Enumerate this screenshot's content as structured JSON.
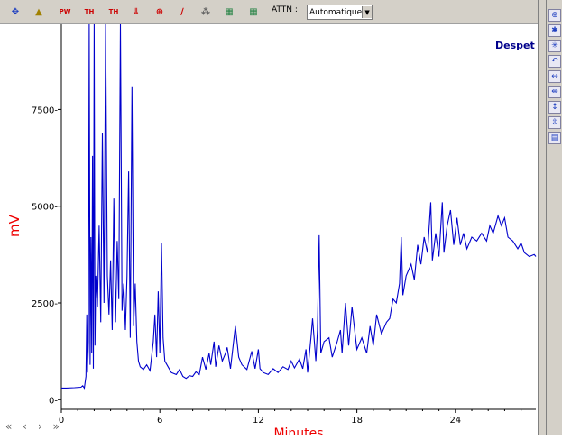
{
  "toolbar": {
    "icons": [
      {
        "name": "move-icon",
        "glyph": "✥"
      },
      {
        "name": "peak-icon",
        "glyph": "▲"
      },
      {
        "name": "pw-icon",
        "glyph": "PW"
      },
      {
        "name": "th-icon",
        "glyph": "TH"
      },
      {
        "name": "thpw-icon",
        "glyph": "TH"
      },
      {
        "name": "integrate-icon",
        "glyph": "⇓"
      },
      {
        "name": "baseline-icon",
        "glyph": "⊕"
      },
      {
        "name": "slope-icon",
        "glyph": "∕"
      },
      {
        "name": "overlay-icon",
        "glyph": "⁂"
      },
      {
        "name": "grid-icon",
        "glyph": "▦"
      },
      {
        "name": "grid-alt-icon",
        "glyph": "▦"
      }
    ],
    "attn_label": "ATTN :",
    "attn_value": "Automatique"
  },
  "right_toolbar": {
    "icons": [
      "zoom-full-icon",
      "zoom-in-icon",
      "zoom-out-icon",
      "undo-icon",
      "expand-horizontal-icon",
      "shrink-horizontal-icon",
      "expand-vertical-icon",
      "shrink-vertical-icon",
      "color-scale-icon"
    ]
  },
  "nav": {
    "first": "«",
    "prev": "‹",
    "next": "›",
    "last": "»"
  },
  "despet_label": "Despet",
  "colors": {
    "line": "#0000cc",
    "axis_label": "#ee0000",
    "link": "#00008b"
  },
  "chart_data": {
    "type": "line",
    "title": "",
    "xlabel": "Minutes",
    "ylabel": "mV",
    "xlim": [
      0,
      28.9
    ],
    "ylim": [
      -250,
      9700
    ],
    "x_ticks": [
      0,
      6,
      12,
      18,
      24
    ],
    "y_ticks": [
      0,
      2500,
      5000,
      7500
    ],
    "x_tick_labels": [
      "0",
      "6",
      "12",
      "18",
      "24"
    ],
    "y_tick_labels": [
      "0-",
      "2500-",
      "5000-",
      "7500-"
    ],
    "grid": false,
    "series": [
      {
        "name": "",
        "points": [
          [
            0,
            300
          ],
          [
            0.3,
            300
          ],
          [
            0.8,
            310
          ],
          [
            1.2,
            320
          ],
          [
            1.3,
            360
          ],
          [
            1.4,
            300
          ],
          [
            1.5,
            600
          ],
          [
            1.55,
            2200
          ],
          [
            1.6,
            700
          ],
          [
            1.65,
            1500
          ],
          [
            1.7,
            9700
          ],
          [
            1.75,
            900
          ],
          [
            1.8,
            4200
          ],
          [
            1.85,
            1200
          ],
          [
            1.9,
            6300
          ],
          [
            1.95,
            800
          ],
          [
            2.0,
            9700
          ],
          [
            2.05,
            1400
          ],
          [
            2.1,
            3200
          ],
          [
            2.2,
            2400
          ],
          [
            2.3,
            4500
          ],
          [
            2.4,
            2000
          ],
          [
            2.5,
            6900
          ],
          [
            2.6,
            2500
          ],
          [
            2.7,
            9700
          ],
          [
            2.8,
            3200
          ],
          [
            2.9,
            2200
          ],
          [
            3.0,
            3600
          ],
          [
            3.1,
            1800
          ],
          [
            3.2,
            5200
          ],
          [
            3.3,
            2000
          ],
          [
            3.4,
            4100
          ],
          [
            3.5,
            2600
          ],
          [
            3.6,
            9700
          ],
          [
            3.7,
            2300
          ],
          [
            3.8,
            3000
          ],
          [
            3.9,
            1800
          ],
          [
            4.0,
            3200
          ],
          [
            4.1,
            5900
          ],
          [
            4.2,
            1600
          ],
          [
            4.3,
            8100
          ],
          [
            4.4,
            1900
          ],
          [
            4.5,
            3000
          ],
          [
            4.6,
            1500
          ],
          [
            4.7,
            1000
          ],
          [
            4.8,
            850
          ],
          [
            5.0,
            780
          ],
          [
            5.2,
            900
          ],
          [
            5.4,
            750
          ],
          [
            5.6,
            1500
          ],
          [
            5.7,
            2200
          ],
          [
            5.8,
            1100
          ],
          [
            5.9,
            2800
          ],
          [
            6.0,
            1200
          ],
          [
            6.1,
            4050
          ],
          [
            6.2,
            1600
          ],
          [
            6.3,
            1000
          ],
          [
            6.5,
            850
          ],
          [
            6.7,
            700
          ],
          [
            7.0,
            650
          ],
          [
            7.2,
            780
          ],
          [
            7.4,
            600
          ],
          [
            7.6,
            550
          ],
          [
            7.8,
            620
          ],
          [
            8.0,
            600
          ],
          [
            8.2,
            720
          ],
          [
            8.4,
            650
          ],
          [
            8.6,
            1100
          ],
          [
            8.8,
            780
          ],
          [
            9.0,
            1200
          ],
          [
            9.1,
            900
          ],
          [
            9.3,
            1500
          ],
          [
            9.4,
            850
          ],
          [
            9.6,
            1400
          ],
          [
            9.8,
            1000
          ],
          [
            10.0,
            1200
          ],
          [
            10.1,
            1350
          ],
          [
            10.3,
            800
          ],
          [
            10.6,
            1900
          ],
          [
            10.8,
            1100
          ],
          [
            11.0,
            900
          ],
          [
            11.3,
            780
          ],
          [
            11.6,
            1250
          ],
          [
            11.8,
            800
          ],
          [
            12.0,
            1300
          ],
          [
            12.1,
            800
          ],
          [
            12.3,
            700
          ],
          [
            12.6,
            650
          ],
          [
            12.9,
            800
          ],
          [
            13.2,
            700
          ],
          [
            13.5,
            850
          ],
          [
            13.8,
            780
          ],
          [
            14.0,
            1000
          ],
          [
            14.2,
            820
          ],
          [
            14.5,
            1050
          ],
          [
            14.7,
            800
          ],
          [
            14.9,
            1300
          ],
          [
            15.0,
            700
          ],
          [
            15.2,
            1600
          ],
          [
            15.3,
            2100
          ],
          [
            15.5,
            1000
          ],
          [
            15.6,
            1800
          ],
          [
            15.7,
            4250
          ],
          [
            15.8,
            1200
          ],
          [
            16.0,
            1500
          ],
          [
            16.3,
            1600
          ],
          [
            16.5,
            1100
          ],
          [
            16.8,
            1500
          ],
          [
            17.0,
            1800
          ],
          [
            17.1,
            1200
          ],
          [
            17.3,
            2500
          ],
          [
            17.5,
            1400
          ],
          [
            17.7,
            2400
          ],
          [
            18.0,
            1300
          ],
          [
            18.3,
            1600
          ],
          [
            18.6,
            1200
          ],
          [
            18.8,
            1900
          ],
          [
            19.0,
            1400
          ],
          [
            19.2,
            2200
          ],
          [
            19.5,
            1700
          ],
          [
            19.8,
            2000
          ],
          [
            20.0,
            2100
          ],
          [
            20.2,
            2600
          ],
          [
            20.4,
            2500
          ],
          [
            20.6,
            3000
          ],
          [
            20.7,
            4200
          ],
          [
            20.8,
            2700
          ],
          [
            21.0,
            3200
          ],
          [
            21.3,
            3500
          ],
          [
            21.5,
            3100
          ],
          [
            21.7,
            4000
          ],
          [
            21.9,
            3500
          ],
          [
            22.1,
            4200
          ],
          [
            22.3,
            3800
          ],
          [
            22.5,
            5100
          ],
          [
            22.6,
            3600
          ],
          [
            22.8,
            4300
          ],
          [
            23.0,
            3700
          ],
          [
            23.2,
            5100
          ],
          [
            23.3,
            3800
          ],
          [
            23.5,
            4500
          ],
          [
            23.7,
            4900
          ],
          [
            23.9,
            4000
          ],
          [
            24.1,
            4700
          ],
          [
            24.3,
            4000
          ],
          [
            24.5,
            4300
          ],
          [
            24.7,
            3900
          ],
          [
            25.0,
            4200
          ],
          [
            25.3,
            4100
          ],
          [
            25.6,
            4300
          ],
          [
            25.9,
            4100
          ],
          [
            26.1,
            4500
          ],
          [
            26.3,
            4300
          ],
          [
            26.6,
            4750
          ],
          [
            26.8,
            4500
          ],
          [
            27.0,
            4700
          ],
          [
            27.2,
            4200
          ],
          [
            27.5,
            4100
          ],
          [
            27.8,
            3900
          ],
          [
            28.0,
            4050
          ],
          [
            28.2,
            3800
          ],
          [
            28.5,
            3700
          ],
          [
            28.8,
            3750
          ],
          [
            28.9,
            3700
          ]
        ]
      }
    ]
  }
}
